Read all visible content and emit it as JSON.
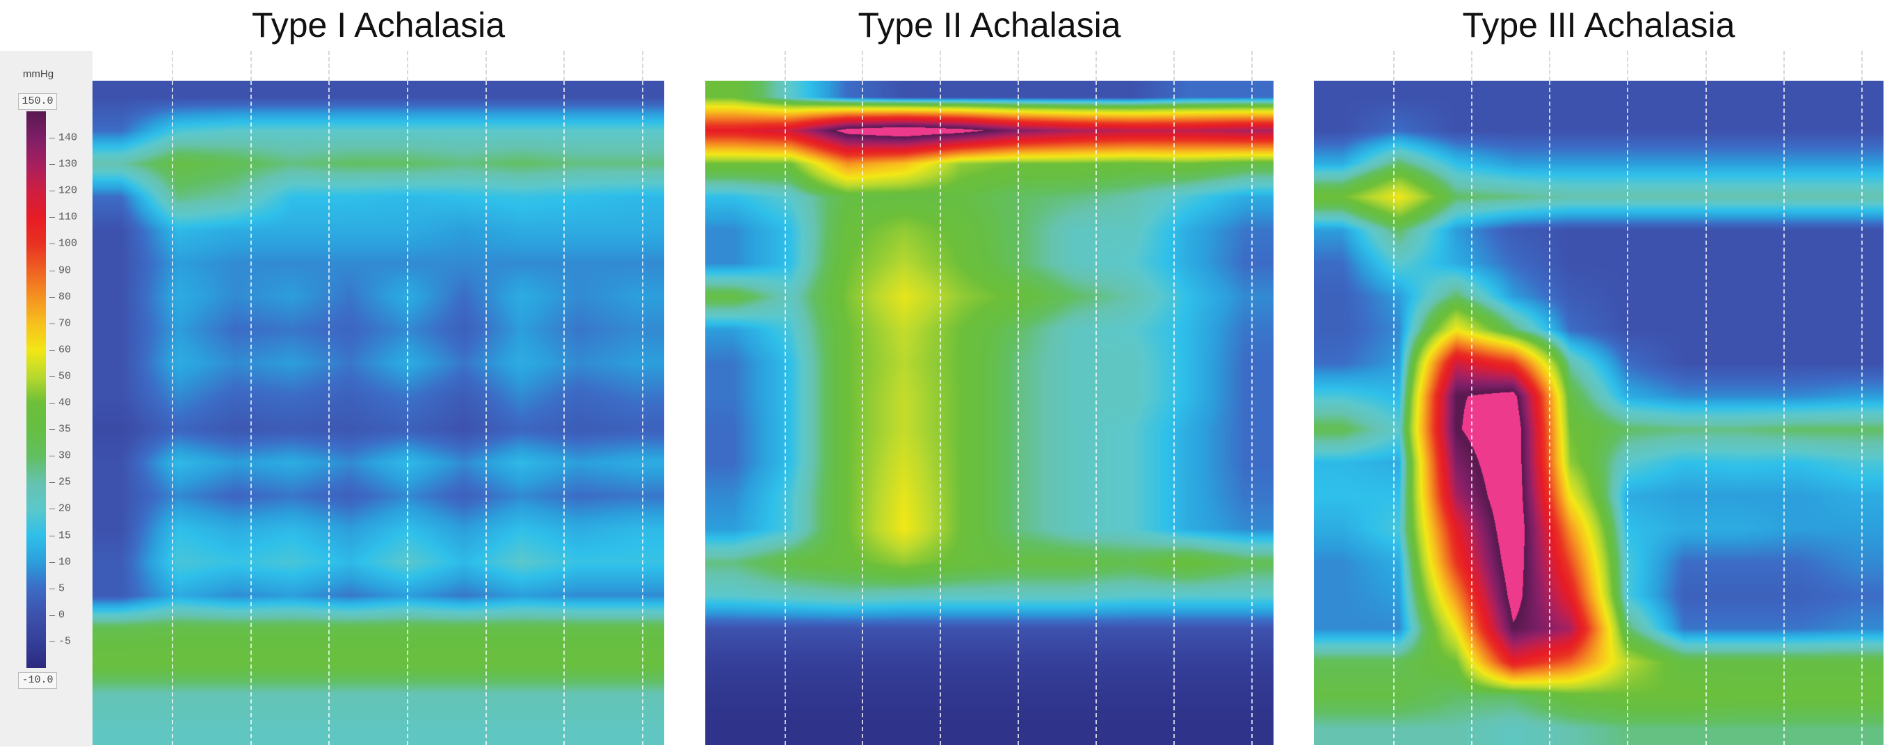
{
  "chart_data": {
    "type": "heatmap",
    "colorbar": {
      "unit": "mmHg",
      "max_label": "150.0",
      "min_label": "-10.0",
      "range": [
        -10,
        150
      ],
      "ticks": [
        140,
        130,
        120,
        110,
        100,
        90,
        80,
        70,
        60,
        50,
        40,
        35,
        30,
        25,
        20,
        15,
        10,
        5,
        0,
        -5
      ],
      "colors": {
        "-10": "#2b2a7e",
        "-5": "#35409a",
        "0": "#3d52ad",
        "5": "#3c6cc6",
        "10": "#2c9fdc",
        "15": "#2fc0ea",
        "20": "#5cc8cc",
        "25": "#66c3b0",
        "30": "#62bf62",
        "35": "#66bf44",
        "40": "#6cbf3a",
        "50": "#b9d92f",
        "60": "#f2e816",
        "70": "#f8c11e",
        "80": "#f59321",
        "90": "#f06322",
        "100": "#e93322",
        "110": "#e81c26",
        "120": "#cf1f42",
        "130": "#a8205f",
        "140": "#7f1f67",
        "150": "#5a1a50"
      },
      "over_color": "#ee3a8c"
    },
    "panels": [
      {
        "title": "Type I Achalasia",
        "values": [
          [
            0,
            0,
            0,
            0,
            0,
            0,
            0,
            0,
            0,
            0
          ],
          [
            5,
            18,
            20,
            20,
            20,
            20,
            20,
            20,
            20,
            20
          ],
          [
            25,
            35,
            32,
            28,
            30,
            30,
            28,
            30,
            28,
            28
          ],
          [
            5,
            28,
            25,
            15,
            15,
            14,
            15,
            16,
            15,
            14
          ],
          [
            0,
            14,
            12,
            12,
            12,
            12,
            10,
            12,
            12,
            12
          ],
          [
            0,
            10,
            8,
            8,
            8,
            8,
            8,
            8,
            8,
            8
          ],
          [
            0,
            12,
            8,
            10,
            6,
            12,
            5,
            12,
            8,
            10
          ],
          [
            0,
            10,
            5,
            6,
            4,
            8,
            3,
            10,
            6,
            8
          ],
          [
            0,
            12,
            8,
            10,
            6,
            12,
            6,
            12,
            8,
            10
          ],
          [
            0,
            8,
            4,
            5,
            3,
            6,
            2,
            8,
            4,
            6
          ],
          [
            -2,
            4,
            1,
            2,
            1,
            3,
            0,
            4,
            2,
            3
          ],
          [
            0,
            14,
            10,
            12,
            8,
            14,
            8,
            14,
            10,
            12
          ],
          [
            0,
            8,
            4,
            6,
            3,
            8,
            3,
            8,
            5,
            6
          ],
          [
            0,
            15,
            12,
            14,
            10,
            15,
            10,
            15,
            12,
            14
          ],
          [
            2,
            18,
            16,
            18,
            14,
            20,
            14,
            20,
            16,
            16
          ],
          [
            2,
            12,
            8,
            10,
            6,
            10,
            6,
            10,
            8,
            8
          ],
          [
            33,
            34,
            34,
            34,
            34,
            34,
            34,
            34,
            34,
            34
          ],
          [
            38,
            38,
            38,
            38,
            38,
            38,
            38,
            38,
            38,
            38
          ],
          [
            24,
            24,
            24,
            24,
            24,
            24,
            24,
            24,
            24,
            24
          ],
          [
            22,
            22,
            22,
            22,
            22,
            22,
            22,
            22,
            22,
            22
          ]
        ]
      },
      {
        "title": "Type II Achalasia",
        "values": [
          [
            40,
            20,
            5,
            0,
            0,
            0,
            0,
            0,
            5,
            5
          ],
          [
            110,
            120,
            160,
            170,
            160,
            140,
            130,
            125,
            125,
            130
          ],
          [
            40,
            40,
            80,
            70,
            45,
            40,
            40,
            38,
            40,
            35
          ],
          [
            15,
            20,
            35,
            35,
            35,
            30,
            28,
            25,
            18,
            12
          ],
          [
            8,
            15,
            38,
            45,
            38,
            30,
            22,
            22,
            12,
            6
          ],
          [
            8,
            15,
            40,
            50,
            40,
            30,
            22,
            20,
            12,
            5
          ],
          [
            35,
            22,
            42,
            58,
            45,
            38,
            30,
            25,
            15,
            8
          ],
          [
            10,
            18,
            40,
            52,
            40,
            30,
            22,
            20,
            14,
            6
          ],
          [
            6,
            15,
            40,
            50,
            40,
            28,
            22,
            22,
            14,
            5
          ],
          [
            6,
            15,
            40,
            52,
            40,
            28,
            22,
            22,
            14,
            5
          ],
          [
            5,
            15,
            40,
            52,
            40,
            28,
            22,
            20,
            12,
            5
          ],
          [
            5,
            15,
            40,
            55,
            40,
            28,
            22,
            20,
            12,
            5
          ],
          [
            8,
            18,
            40,
            58,
            40,
            28,
            22,
            20,
            12,
            6
          ],
          [
            10,
            18,
            40,
            60,
            40,
            28,
            22,
            20,
            12,
            8
          ],
          [
            28,
            35,
            38,
            45,
            38,
            35,
            35,
            33,
            38,
            32
          ],
          [
            20,
            22,
            24,
            22,
            22,
            22,
            22,
            20,
            20,
            20
          ],
          [
            0,
            0,
            0,
            0,
            0,
            0,
            0,
            0,
            0,
            0
          ],
          [
            -5,
            -5,
            -5,
            -5,
            -5,
            -5,
            -5,
            -5,
            -5,
            -5
          ],
          [
            -7,
            -7,
            -7,
            -7,
            -7,
            -7,
            -7,
            -7,
            -7,
            -7
          ],
          [
            -8,
            -8,
            -8,
            -8,
            -8,
            -8,
            -8,
            -8,
            -8,
            -8
          ]
        ]
      },
      {
        "title": "Type III Achalasia",
        "values": [
          [
            0,
            0,
            0,
            0,
            0,
            0,
            0,
            0,
            0,
            0
          ],
          [
            0,
            5,
            0,
            0,
            0,
            0,
            0,
            0,
            0,
            0
          ],
          [
            12,
            30,
            15,
            10,
            10,
            10,
            10,
            10,
            10,
            10
          ],
          [
            40,
            60,
            30,
            28,
            25,
            25,
            25,
            25,
            25,
            25
          ],
          [
            10,
            30,
            10,
            2,
            0,
            0,
            0,
            0,
            0,
            0
          ],
          [
            5,
            20,
            12,
            5,
            0,
            0,
            0,
            0,
            0,
            0
          ],
          [
            3,
            10,
            30,
            10,
            2,
            0,
            0,
            0,
            0,
            0
          ],
          [
            3,
            8,
            60,
            30,
            5,
            0,
            0,
            0,
            0,
            0
          ],
          [
            5,
            10,
            120,
            100,
            25,
            5,
            0,
            0,
            0,
            0
          ],
          [
            18,
            14,
            150,
            160,
            35,
            12,
            8,
            8,
            8,
            10
          ],
          [
            32,
            20,
            150,
            170,
            40,
            30,
            28,
            28,
            30,
            30
          ],
          [
            14,
            12,
            140,
            170,
            45,
            20,
            15,
            16,
            15,
            18
          ],
          [
            15,
            15,
            130,
            170,
            60,
            12,
            10,
            10,
            10,
            12
          ],
          [
            12,
            18,
            110,
            170,
            80,
            15,
            12,
            12,
            10,
            10
          ],
          [
            8,
            12,
            100,
            165,
            95,
            18,
            5,
            5,
            5,
            8
          ],
          [
            8,
            10,
            80,
            160,
            110,
            18,
            3,
            3,
            3,
            5
          ],
          [
            8,
            8,
            60,
            150,
            130,
            30,
            6,
            6,
            6,
            8
          ],
          [
            32,
            32,
            40,
            110,
            90,
            50,
            35,
            35,
            35,
            35
          ],
          [
            35,
            35,
            30,
            30,
            38,
            40,
            40,
            38,
            38,
            38
          ],
          [
            25,
            25,
            25,
            22,
            25,
            28,
            28,
            28,
            28,
            28
          ]
        ]
      }
    ]
  }
}
